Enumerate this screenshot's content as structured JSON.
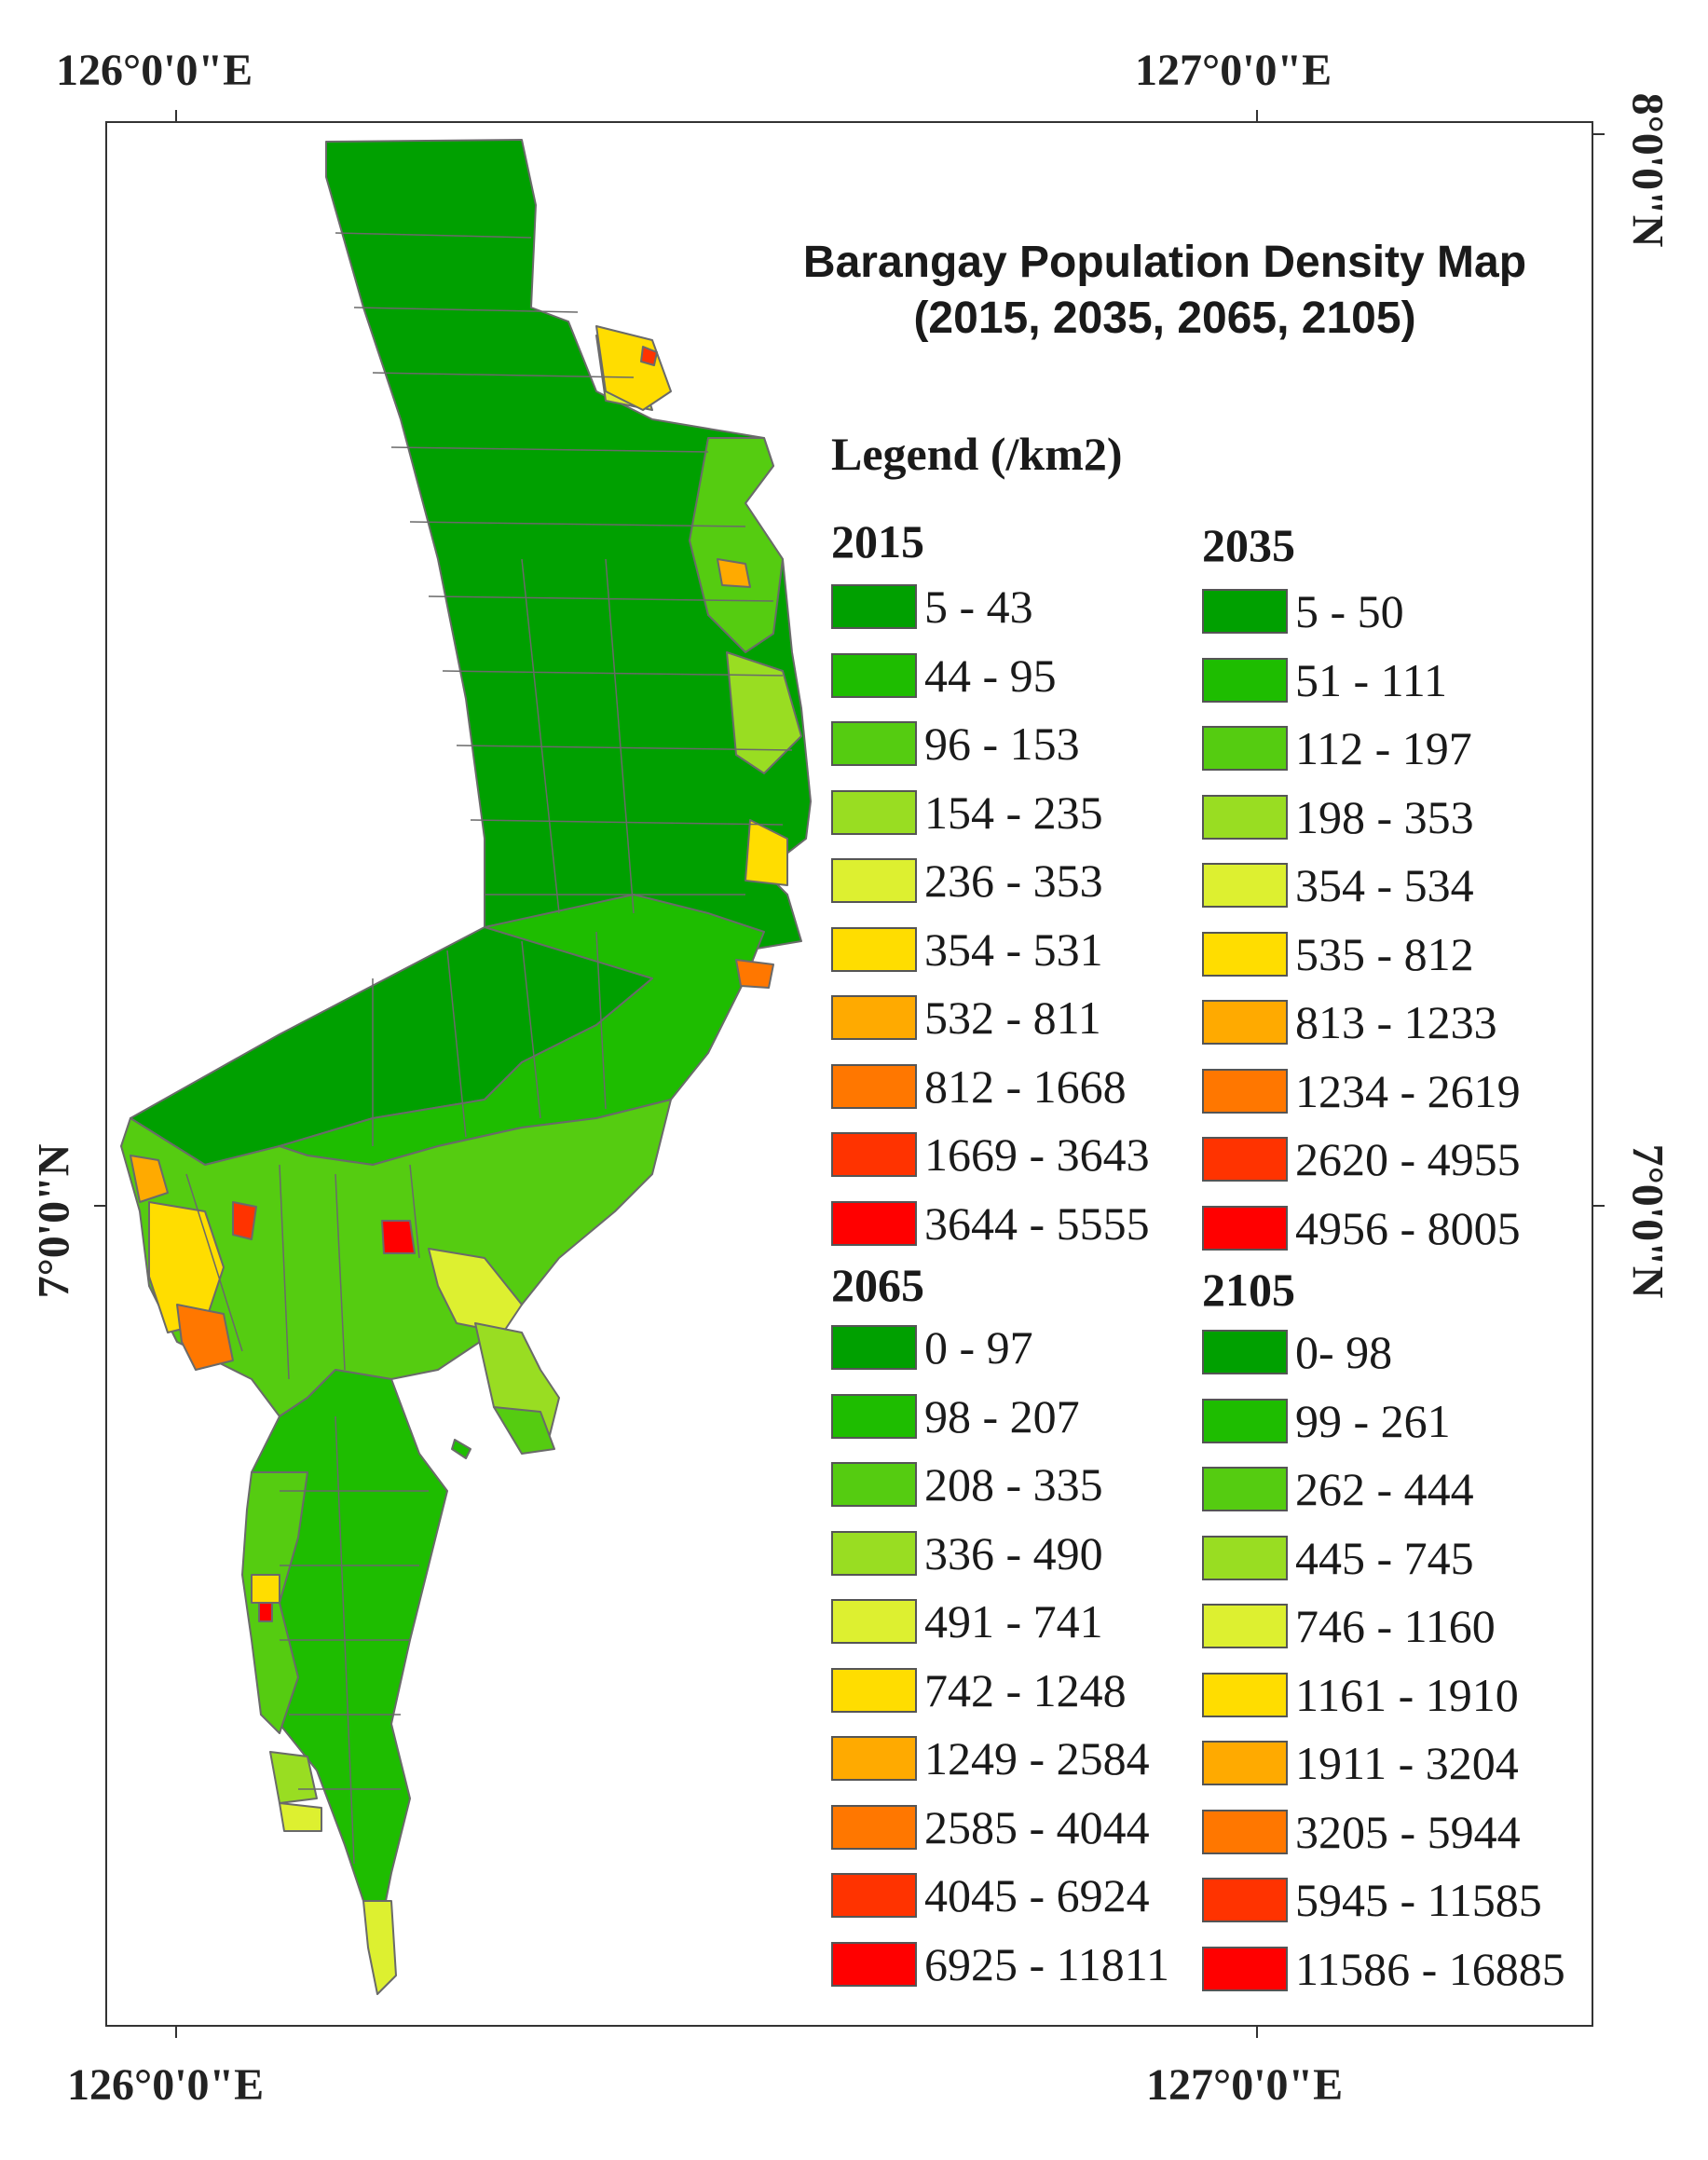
{
  "map": {
    "title_line1": "Barangay Population Density Map",
    "title_line2": "(2015, 2035, 2065, 2105)",
    "coords": {
      "top_left": "126°0'0\"E",
      "top_right": "127°0'0\"E",
      "bottom_left": "126°0'0\"E",
      "bottom_right": "127°0'0\"E",
      "left_lat": "7°0'0\"N",
      "right_upper_lat": "8°0'0\"N",
      "right_lower_lat": "7°0'0\"N"
    }
  },
  "legend": {
    "title": "Legend (/km2)",
    "colors": [
      "#00a000",
      "#1ebd00",
      "#55cc11",
      "#99dd22",
      "#ddf030",
      "#ffdd00",
      "#ffaa00",
      "#ff7700",
      "#ff3300",
      "#ff0000"
    ],
    "groups": [
      {
        "year": "2015",
        "ranges": [
          "5 - 43",
          "44 - 95",
          "96 - 153",
          "154 - 235",
          "236 - 353",
          "354 - 531",
          "532 - 811",
          "812 - 1668",
          "1669 - 3643",
          "3644 - 5555"
        ]
      },
      {
        "year": "2035",
        "ranges": [
          "5 - 50",
          "51 - 111",
          "112 - 197",
          "198 - 353",
          "354 - 534",
          "535 - 812",
          "813 - 1233",
          "1234 - 2619",
          "2620 - 4955",
          "4956 - 8005"
        ]
      },
      {
        "year": "2065",
        "ranges": [
          "0 - 97",
          "98 - 207",
          "208 - 335",
          "336 - 490",
          "491 - 741",
          "742 - 1248",
          "1249 - 2584",
          "2585 - 4044",
          "4045 - 6924",
          "6925 - 11811"
        ]
      },
      {
        "year": "2105",
        "ranges": [
          "0- 98",
          "99 - 261",
          "262 - 444",
          "445 - 745",
          "746 - 1160",
          "1161 - 1910",
          "1911 - 3204",
          "3205 - 5944",
          "5945 - 11585",
          "11586 - 16885"
        ]
      }
    ]
  }
}
